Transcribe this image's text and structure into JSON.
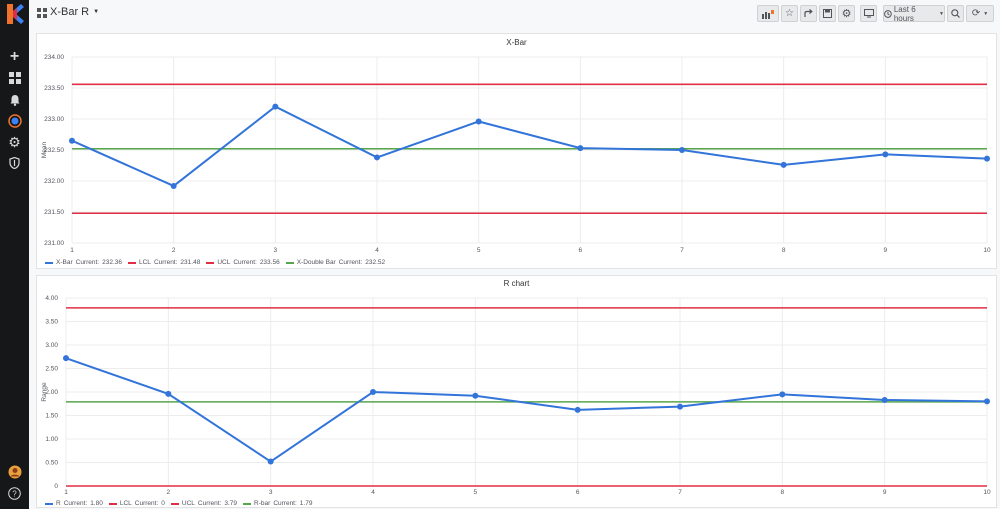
{
  "header": {
    "dashboard_title": "X-Bar R",
    "time_range_label": "Last 6 hours"
  },
  "sidebar": {
    "items": [
      {
        "icon": "plus-icon",
        "glyph": "+"
      },
      {
        "icon": "dashboards-icon",
        "glyph": "▦"
      },
      {
        "icon": "alert-bell-icon",
        "glyph": "🔔"
      },
      {
        "icon": "explore-icon",
        "glyph": "◉"
      },
      {
        "icon": "gear-icon",
        "glyph": "⚙"
      },
      {
        "icon": "shield-icon",
        "glyph": "⛨"
      }
    ],
    "help_glyph": "?"
  },
  "colors": {
    "series_blue": "#3274d9",
    "limit_red": "#e02f44",
    "center_green": "#56a64b"
  },
  "chart_data": [
    {
      "type": "line",
      "title": "X-Bar",
      "ylabel": "Mean",
      "x": [
        1,
        2,
        3,
        4,
        5,
        6,
        7,
        8,
        9,
        10
      ],
      "ylim": [
        231.0,
        234.0
      ],
      "yticks": [
        "231.00",
        "231.50",
        "232.00",
        "232.50",
        "233.00",
        "233.50",
        "234.00"
      ],
      "series": [
        {
          "name": "X-Bar",
          "values": [
            232.65,
            231.92,
            233.2,
            232.38,
            232.96,
            232.53,
            232.5,
            232.26,
            232.43,
            232.36
          ],
          "current": "232.36",
          "color": "#3274d9",
          "points": true
        },
        {
          "name": "LCL",
          "values": [
            231.48,
            231.48,
            231.48,
            231.48,
            231.48,
            231.48,
            231.48,
            231.48,
            231.48,
            231.48
          ],
          "current": "231.48",
          "color": "#e02f44"
        },
        {
          "name": "UCL",
          "values": [
            233.56,
            233.56,
            233.56,
            233.56,
            233.56,
            233.56,
            233.56,
            233.56,
            233.56,
            233.56
          ],
          "current": "233.56",
          "color": "#e02f44"
        },
        {
          "name": "X-Double Bar",
          "values": [
            232.52,
            232.52,
            232.52,
            232.52,
            232.52,
            232.52,
            232.52,
            232.52,
            232.52,
            232.52
          ],
          "current": "232.52",
          "color": "#56a64b"
        }
      ]
    },
    {
      "type": "line",
      "title": "R chart",
      "ylabel": "Range",
      "x": [
        1,
        2,
        3,
        4,
        5,
        6,
        7,
        8,
        9,
        10
      ],
      "ylim": [
        0,
        4.0
      ],
      "yticks": [
        "0",
        "0.50",
        "1.00",
        "1.50",
        "2.00",
        "2.50",
        "3.00",
        "3.50",
        "4.00"
      ],
      "series": [
        {
          "name": "R",
          "values": [
            2.72,
            1.96,
            0.52,
            2.0,
            1.92,
            1.62,
            1.69,
            1.95,
            1.83,
            1.8
          ],
          "current": "1.80",
          "color": "#3274d9",
          "points": true
        },
        {
          "name": "LCL",
          "values": [
            0,
            0,
            0,
            0,
            0,
            0,
            0,
            0,
            0,
            0
          ],
          "current": "0",
          "color": "#e02f44"
        },
        {
          "name": "UCL",
          "values": [
            3.79,
            3.79,
            3.79,
            3.79,
            3.79,
            3.79,
            3.79,
            3.79,
            3.79,
            3.79
          ],
          "current": "3.79",
          "color": "#e02f44"
        },
        {
          "name": "R-bar",
          "values": [
            1.79,
            1.79,
            1.79,
            1.79,
            1.79,
            1.79,
            1.79,
            1.79,
            1.79,
            1.79
          ],
          "current": "1.79",
          "color": "#56a64b"
        }
      ]
    }
  ],
  "legend_current_label": "Current:"
}
